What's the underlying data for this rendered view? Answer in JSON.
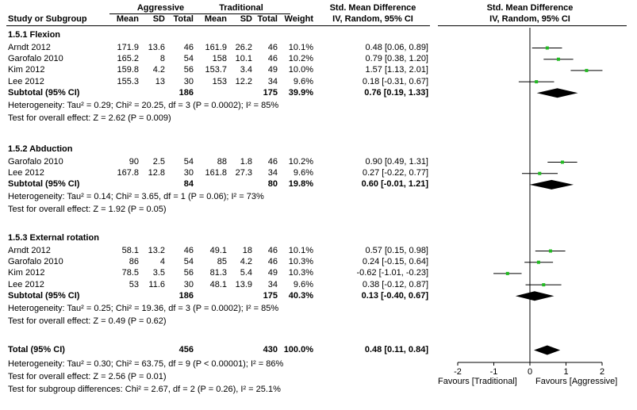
{
  "header": {
    "group1": "Aggressive",
    "group2": "Traditional",
    "smd_title": "Std. Mean Difference",
    "smd_method": "IV, Random, 95% CI",
    "plot_title": "Std. Mean Difference",
    "plot_method": "IV, Random, 95% CI",
    "cols": {
      "study": "Study or Subgroup",
      "mean1": "Mean",
      "sd1": "SD",
      "total1": "Total",
      "mean2": "Mean",
      "sd2": "SD",
      "total2": "Total",
      "weight": "Weight"
    }
  },
  "subgroups": [
    {
      "title": "1.5.1 Flexion",
      "studies": [
        {
          "study": "Arndt 2012",
          "m1": "171.9",
          "sd1": "13.6",
          "n1": "46",
          "m2": "161.9",
          "sd2": "26.2",
          "n2": "46",
          "w": "10.1%",
          "ci": "0.48 [0.06, 0.89]"
        },
        {
          "study": "Garofalo 2010",
          "m1": "165.2",
          "sd1": "8",
          "n1": "54",
          "m2": "158",
          "sd2": "10.1",
          "n2": "46",
          "w": "10.2%",
          "ci": "0.79 [0.38, 1.20]"
        },
        {
          "study": "Kim 2012",
          "m1": "159.8",
          "sd1": "4.2",
          "n1": "56",
          "m2": "153.7",
          "sd2": "3.4",
          "n2": "49",
          "w": "10.0%",
          "ci": "1.57 [1.13, 2.01]"
        },
        {
          "study": "Lee 2012",
          "m1": "155.3",
          "sd1": "13",
          "n1": "30",
          "m2": "153",
          "sd2": "12.2",
          "n2": "34",
          "w": "9.6%",
          "ci": "0.18 [-0.31, 0.67]"
        }
      ],
      "subtotal": {
        "label": "Subtotal (95% CI)",
        "n1": "186",
        "n2": "175",
        "w": "39.9%",
        "ci": "0.76 [0.19, 1.33]"
      },
      "heterogeneity": "Heterogeneity: Tau² = 0.29; Chi² = 20.25, df = 3 (P = 0.0002); I² = 85%",
      "overall": "Test for overall effect: Z = 2.62 (P = 0.009)"
    },
    {
      "title": "1.5.2 Abduction",
      "studies": [
        {
          "study": "Garofalo 2010",
          "m1": "90",
          "sd1": "2.5",
          "n1": "54",
          "m2": "88",
          "sd2": "1.8",
          "n2": "46",
          "w": "10.2%",
          "ci": "0.90 [0.49, 1.31]"
        },
        {
          "study": "Lee 2012",
          "m1": "167.8",
          "sd1": "12.8",
          "n1": "30",
          "m2": "161.8",
          "sd2": "27.3",
          "n2": "34",
          "w": "9.6%",
          "ci": "0.27 [-0.22, 0.77]"
        }
      ],
      "subtotal": {
        "label": "Subtotal (95% CI)",
        "n1": "84",
        "n2": "80",
        "w": "19.8%",
        "ci": "0.60 [-0.01, 1.21]"
      },
      "heterogeneity": "Heterogeneity: Tau² = 0.14; Chi² = 3.65, df = 1 (P = 0.06); I² = 73%",
      "overall": "Test for overall effect: Z = 1.92 (P = 0.05)"
    },
    {
      "title": "1.5.3 External rotation",
      "studies": [
        {
          "study": "Arndt 2012",
          "m1": "58.1",
          "sd1": "13.2",
          "n1": "46",
          "m2": "49.1",
          "sd2": "18",
          "n2": "46",
          "w": "10.1%",
          "ci": "0.57 [0.15, 0.98]"
        },
        {
          "study": "Garofalo 2010",
          "m1": "86",
          "sd1": "4",
          "n1": "54",
          "m2": "85",
          "sd2": "4.2",
          "n2": "46",
          "w": "10.3%",
          "ci": "0.24 [-0.15, 0.64]"
        },
        {
          "study": "Kim 2012",
          "m1": "78.5",
          "sd1": "3.5",
          "n1": "56",
          "m2": "81.3",
          "sd2": "5.4",
          "n2": "49",
          "w": "10.3%",
          "ci": "-0.62 [-1.01, -0.23]"
        },
        {
          "study": "Lee 2012",
          "m1": "53",
          "sd1": "11.6",
          "n1": "30",
          "m2": "48.1",
          "sd2": "13.9",
          "n2": "34",
          "w": "9.6%",
          "ci": "0.38 [-0.12, 0.87]"
        }
      ],
      "subtotal": {
        "label": "Subtotal (95% CI)",
        "n1": "186",
        "n2": "175",
        "w": "40.3%",
        "ci": "0.13 [-0.40, 0.67]"
      },
      "heterogeneity": "Heterogeneity: Tau² = 0.25; Chi² = 19.36, df = 3 (P = 0.0002); I² = 85%",
      "overall": "Test for overall effect: Z = 0.49 (P = 0.62)"
    }
  ],
  "total": {
    "label": "Total (95% CI)",
    "n1": "456",
    "n2": "430",
    "w": "100.0%",
    "ci": "0.48 [0.11, 0.84]"
  },
  "total_heterogeneity": "Heterogeneity: Tau² = 0.30; Chi² = 63.75, df = 9 (P < 0.00001); I² = 86%",
  "total_overall": "Test for overall effect: Z = 2.56 (P = 0.01)",
  "subgroup_diff": "Test for subgroup differences: Chi² = 2.67, df = 2 (P = 0.26), I² = 25.1%",
  "chart_data": {
    "type": "scatter",
    "xlim": [
      -2,
      2
    ],
    "ticks": [
      -2,
      -1,
      0,
      1,
      2
    ],
    "tick_labels": [
      "-2",
      "-1",
      "0",
      "1",
      "2"
    ],
    "xlabel_left": "Favours [Traditional]",
    "xlabel_right": "Favours [Aggressive]",
    "point_color": "#22bb22",
    "diamond_color": "#000000",
    "studies": [
      {
        "group": 0,
        "est": 0.48,
        "lo": 0.06,
        "hi": 0.89
      },
      {
        "group": 0,
        "est": 0.79,
        "lo": 0.38,
        "hi": 1.2
      },
      {
        "group": 0,
        "est": 1.57,
        "lo": 1.13,
        "hi": 2.01
      },
      {
        "group": 0,
        "est": 0.18,
        "lo": -0.31,
        "hi": 0.67
      },
      {
        "group": 1,
        "est": 0.9,
        "lo": 0.49,
        "hi": 1.31
      },
      {
        "group": 1,
        "est": 0.27,
        "lo": -0.22,
        "hi": 0.77
      },
      {
        "group": 2,
        "est": 0.57,
        "lo": 0.15,
        "hi": 0.98
      },
      {
        "group": 2,
        "est": 0.24,
        "lo": -0.15,
        "hi": 0.64
      },
      {
        "group": 2,
        "est": -0.62,
        "lo": -1.01,
        "hi": -0.23
      },
      {
        "group": 2,
        "est": 0.38,
        "lo": -0.12,
        "hi": 0.87
      }
    ],
    "subtotals": [
      {
        "group": 0,
        "est": 0.76,
        "lo": 0.19,
        "hi": 1.33
      },
      {
        "group": 1,
        "est": 0.6,
        "lo": -0.01,
        "hi": 1.21
      },
      {
        "group": 2,
        "est": 0.13,
        "lo": -0.4,
        "hi": 0.67
      }
    ],
    "total": {
      "est": 0.48,
      "lo": 0.11,
      "hi": 0.84
    }
  }
}
